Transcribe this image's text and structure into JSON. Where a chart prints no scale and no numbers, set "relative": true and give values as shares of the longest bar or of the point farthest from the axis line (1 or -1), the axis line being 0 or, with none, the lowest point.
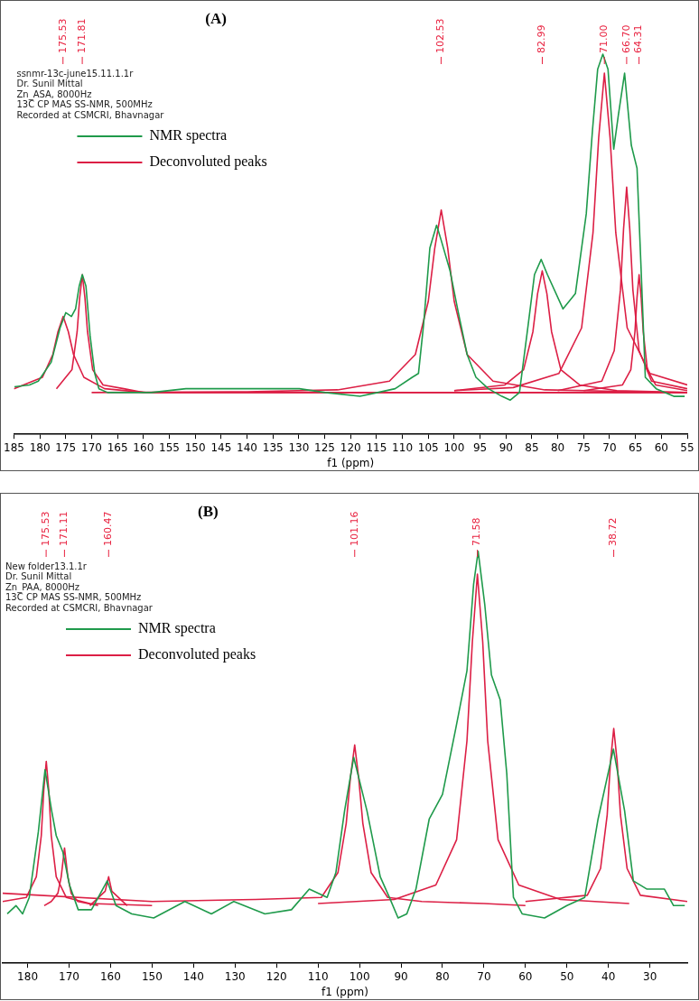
{
  "chart_data": [
    {
      "type": "line",
      "title": "(A)",
      "xlabel": "f1 (ppm)",
      "relative": true,
      "legend": "top left",
      "xlim": [
        185,
        55
      ],
      "xticks": [
        185,
        180,
        175,
        170,
        165,
        160,
        155,
        150,
        145,
        140,
        135,
        130,
        125,
        120,
        115,
        110,
        105,
        100,
        95,
        90,
        85,
        80,
        75,
        70,
        65,
        60,
        55
      ],
      "annotations": [
        "ssnmr-13c-june15.11.1.1r",
        "Dr. Sunil Mittal",
        "Zn_ASA, 8000Hz",
        "13C CP MAS SS-NMR, 500MHz",
        "Recorded at CSMCRI, Bhavnagar",
        {
          "text": "175.53",
          "x": 175.53
        },
        {
          "text": "171.81",
          "x": 171.81
        },
        {
          "text": "102.53",
          "x": 102.53
        },
        {
          "text": "82.99",
          "x": 82.99
        },
        {
          "text": "71.00",
          "x": 71.0
        },
        {
          "text": "66.70",
          "x": 66.7
        },
        {
          "text": "64.31",
          "x": 64.31
        }
      ],
      "series": [
        {
          "name": "NMR spectra",
          "color": "#1f9a4b",
          "x": [
            184.9,
            182.0,
            180.3,
            177.8,
            176.1,
            175.0,
            173.9,
            173.1,
            172.4,
            171.8,
            171.1,
            170.3,
            169.4,
            168.6,
            166.9,
            161.8,
            158.5,
            151.8,
            141.7,
            135.0,
            129.9,
            124.9,
            118.2,
            114.8,
            111.4,
            108.1,
            106.9,
            105.9,
            104.7,
            103.4,
            102.5,
            100.8,
            99.2,
            97.5,
            95.8,
            93.4,
            90.8,
            89.2,
            87.4,
            85.7,
            84.5,
            83.2,
            82.0,
            79.0,
            76.6,
            74.5,
            73.3,
            72.3,
            71.3,
            70.3,
            69.2,
            68.3,
            67.1,
            65.8,
            64.7,
            63.9,
            63.1,
            61.0,
            57.6,
            55.5
          ],
          "values": [
            0.125,
            0.13,
            0.14,
            0.19,
            0.28,
            0.32,
            0.31,
            0.33,
            0.39,
            0.42,
            0.39,
            0.26,
            0.16,
            0.12,
            0.11,
            0.11,
            0.11,
            0.12,
            0.12,
            0.12,
            0.12,
            0.11,
            0.1,
            0.11,
            0.12,
            0.15,
            0.16,
            0.29,
            0.49,
            0.55,
            0.51,
            0.43,
            0.32,
            0.21,
            0.15,
            0.12,
            0.1,
            0.09,
            0.11,
            0.29,
            0.42,
            0.46,
            0.42,
            0.33,
            0.37,
            0.58,
            0.8,
            0.96,
            1.0,
            0.96,
            0.75,
            0.84,
            0.95,
            0.76,
            0.7,
            0.43,
            0.15,
            0.12,
            0.1,
            0.1
          ]
        },
        {
          "name": "Deconvoluted peaks",
          "color": "#dc1f45",
          "x": [
            185,
            179.5,
            177.5,
            176.5,
            175.5,
            174.5,
            173.5,
            171.5,
            167.5,
            159.5,
            55
          ],
          "values": [
            0.12,
            0.15,
            0.21,
            0.27,
            0.31,
            0.27,
            0.21,
            0.15,
            0.12,
            0.11,
            0.11
          ]
        },
        {
          "color": "#dc1f45",
          "x": [
            176.8,
            173.8,
            172.8,
            172.3,
            171.8,
            171.3,
            170.8,
            169.8,
            167.8,
            163.8,
            160,
            55
          ],
          "values": [
            0.12,
            0.17,
            0.27,
            0.36,
            0.42,
            0.36,
            0.27,
            0.17,
            0.13,
            0.12,
            0.11,
            0.11
          ]
        },
        {
          "color": "#dc1f45",
          "x": [
            170,
            140,
            122.5,
            112.5,
            107.5,
            105,
            103.75,
            102.5,
            101.25,
            100,
            97.5,
            92.5,
            82.5,
            65,
            55
          ],
          "values": [
            0.11,
            0.112,
            0.117,
            0.14,
            0.21,
            0.35,
            0.49,
            0.59,
            0.49,
            0.35,
            0.21,
            0.14,
            0.117,
            0.112,
            0.11
          ]
        },
        {
          "color": "#dc1f45",
          "x": [
            100,
            90.2,
            86.6,
            84.8,
            83.9,
            83,
            82.1,
            81.2,
            79.4,
            75.8,
            68.6,
            55
          ],
          "values": [
            0.115,
            0.13,
            0.17,
            0.27,
            0.37,
            0.43,
            0.37,
            0.27,
            0.17,
            0.13,
            0.115,
            0.11
          ]
        },
        {
          "color": "#dc1f45",
          "x": [
            100,
            88.6,
            79.8,
            75.4,
            73.2,
            72.1,
            71,
            69.9,
            68.8,
            66.6,
            62.2,
            55
          ],
          "values": [
            0.115,
            0.123,
            0.16,
            0.28,
            0.53,
            0.78,
            0.95,
            0.78,
            0.53,
            0.28,
            0.16,
            0.13
          ]
        },
        {
          "color": "#dc1f45",
          "x": [
            80,
            71.5,
            69.1,
            67.9,
            67.3,
            66.7,
            66.1,
            65.5,
            64.3,
            61.9,
            55
          ],
          "values": [
            0.115,
            0.14,
            0.22,
            0.38,
            0.54,
            0.65,
            0.54,
            0.38,
            0.22,
            0.14,
            0.12
          ]
        },
        {
          "color": "#dc1f45",
          "x": [
            75,
            67.5,
            65.9,
            65.1,
            64.7,
            64.3,
            63.9,
            63.5,
            62.7,
            61.1,
            55
          ],
          "values": [
            0.115,
            0.13,
            0.17,
            0.27,
            0.36,
            0.42,
            0.36,
            0.27,
            0.17,
            0.13,
            0.115
          ]
        }
      ]
    },
    {
      "type": "line",
      "title": "(B)",
      "xlabel": "f1 (ppm)",
      "relative": true,
      "legend": "top left",
      "xlim": [
        186,
        21
      ],
      "xticks": [
        180,
        170,
        160,
        150,
        140,
        130,
        120,
        110,
        100,
        90,
        80,
        70,
        60,
        50,
        40,
        30
      ],
      "annotations": [
        "New folder13.1.1r",
        "Dr. Sunil Mittal",
        "Zn_PAA, 8000Hz",
        "13C CP MAS SS-NMR, 500MHz",
        "Recorded at CSMCRI, Bhavnagar",
        {
          "text": "175.53",
          "x": 175.53
        },
        {
          "text": "171.11",
          "x": 171.11
        },
        {
          "text": "160.47",
          "x": 160.47
        },
        {
          "text": "101.16",
          "x": 101.16
        },
        {
          "text": "71.58",
          "x": 71.58
        },
        {
          "text": "38.72",
          "x": 38.72
        }
      ],
      "series": [
        {
          "name": "NMR spectra",
          "color": "#1f9a4b",
          "x": [
            184.9,
            182.8,
            181.2,
            179.6,
            177.4,
            175.8,
            174.2,
            173.1,
            171.5,
            169.9,
            167.8,
            164.6,
            160.8,
            158.7,
            154.9,
            149.6,
            142.1,
            135.7,
            130.3,
            122.8,
            116.4,
            112.1,
            107.8,
            105.7,
            103.6,
            101.4,
            98.2,
            95.0,
            92.8,
            90.7,
            88.6,
            86.4,
            83.2,
            80.0,
            76.8,
            74.1,
            72.5,
            71.4,
            69.8,
            68.2,
            66.1,
            64.5,
            62.9,
            60.8,
            55.4,
            50.0,
            45.7,
            42.5,
            38.8,
            36.1,
            34.0,
            30.7,
            26.5,
            24.3,
            21.6
          ],
          "values": [
            0.12,
            0.14,
            0.12,
            0.16,
            0.32,
            0.47,
            0.37,
            0.31,
            0.27,
            0.19,
            0.13,
            0.13,
            0.2,
            0.14,
            0.12,
            0.11,
            0.15,
            0.12,
            0.15,
            0.12,
            0.13,
            0.18,
            0.16,
            0.22,
            0.37,
            0.5,
            0.37,
            0.21,
            0.16,
            0.11,
            0.12,
            0.18,
            0.35,
            0.41,
            0.57,
            0.71,
            0.92,
            1.0,
            0.87,
            0.7,
            0.64,
            0.46,
            0.16,
            0.12,
            0.11,
            0.14,
            0.16,
            0.35,
            0.52,
            0.37,
            0.2,
            0.18,
            0.18,
            0.14,
            0.14
          ]
        },
        {
          "name": "Deconvoluted peaks",
          "color": "#dc1f45",
          "x": [
            186,
            180.3,
            177.9,
            176.7,
            176.1,
            175.5,
            174.9,
            174.3,
            173.1,
            170.7,
            165,
            150
          ],
          "values": [
            0.15,
            0.16,
            0.21,
            0.31,
            0.42,
            0.49,
            0.42,
            0.31,
            0.21,
            0.16,
            0.145,
            0.14
          ]
        },
        {
          "color": "#dc1f45",
          "x": [
            176,
            174.3,
            172.7,
            171.9,
            171.1,
            170.3,
            169.5,
            167.9,
            163
          ],
          "values": [
            0.14,
            0.15,
            0.17,
            0.21,
            0.28,
            0.21,
            0.17,
            0.15,
            0.14
          ]
        },
        {
          "color": "#dc1f45",
          "x": [
            165,
            161.3,
            160.47,
            159.7,
            156
          ],
          "values": [
            0.14,
            0.175,
            0.21,
            0.175,
            0.14
          ]
        },
        {
          "color": "#dc1f45",
          "x": [
            186,
            150,
            125,
            109.2,
            105.2,
            103.2,
            102.2,
            101.16,
            100.2,
            99.2,
            97.2,
            93.2,
            85,
            70,
            60
          ],
          "values": [
            0.17,
            0.15,
            0.155,
            0.16,
            0.22,
            0.34,
            0.45,
            0.53,
            0.45,
            0.34,
            0.22,
            0.16,
            0.15,
            0.145,
            0.14
          ]
        },
        {
          "color": "#dc1f45",
          "x": [
            110,
            91.6,
            81.6,
            76.6,
            74.1,
            72.8,
            71.58,
            70.3,
            69.1,
            66.6,
            61.6,
            51.6,
            35
          ],
          "values": [
            0.145,
            0.155,
            0.19,
            0.3,
            0.54,
            0.78,
            0.945,
            0.78,
            0.54,
            0.3,
            0.19,
            0.155,
            0.145
          ]
        },
        {
          "color": "#dc1f45",
          "x": [
            60,
            45.1,
            41.9,
            40.3,
            39.5,
            38.72,
            37.9,
            37.1,
            35.5,
            32.3,
            21
          ],
          "values": [
            0.15,
            0.165,
            0.23,
            0.36,
            0.49,
            0.57,
            0.49,
            0.36,
            0.23,
            0.165,
            0.15
          ]
        }
      ]
    }
  ]
}
